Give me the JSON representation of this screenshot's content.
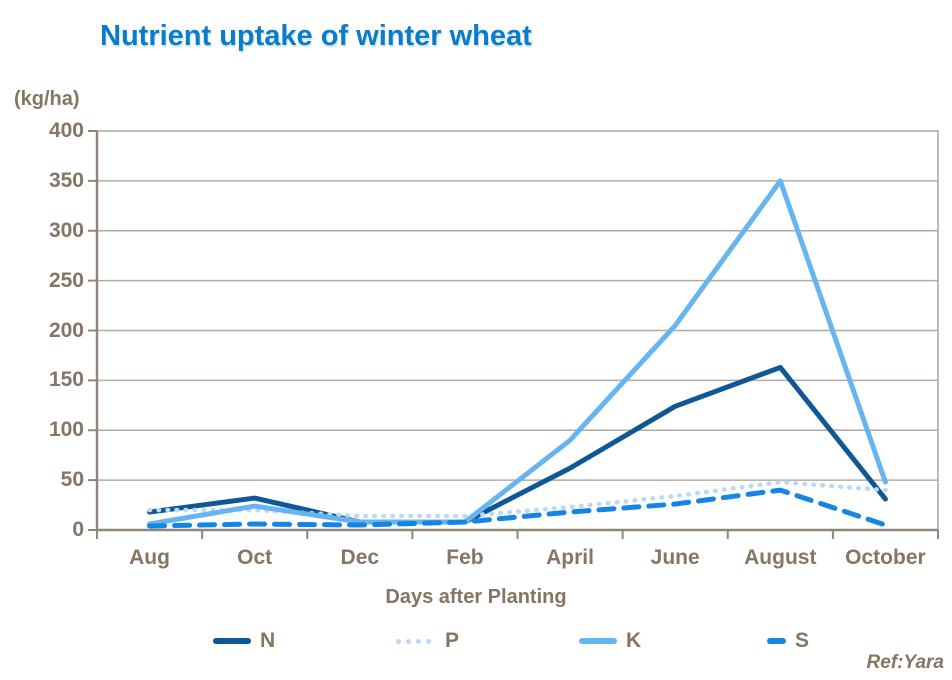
{
  "title": "Nutrient uptake of winter wheat",
  "y_unit_label": "(kg/ha)",
  "x_axis_title": "Days after Planting",
  "ref_label": "Ref:Yara",
  "colors": {
    "title_blue": "#0b7cc9",
    "axis_text": "#857663",
    "gridline": "#b3aaa0",
    "axis_line": "#8f8678"
  },
  "chart_data": {
    "type": "line",
    "title": "Nutrient uptake of winter wheat",
    "xlabel": "Days after Planting",
    "ylabel": "(kg/ha)",
    "categories": [
      "Aug",
      "Oct",
      "Dec",
      "Feb",
      "April",
      "June",
      "August",
      "October"
    ],
    "yticks": [
      0,
      50,
      100,
      150,
      200,
      250,
      300,
      350,
      400
    ],
    "ylim": [
      0,
      400
    ],
    "grid": true,
    "legend_position": "bottom",
    "annotation": "Ref:Yara",
    "series": [
      {
        "name": "N",
        "color": "#0f5795",
        "style": "solid",
        "values": [
          18,
          32,
          8,
          8,
          62,
          124,
          163,
          31
        ]
      },
      {
        "name": "P",
        "color": "#bcd9f4",
        "style": "dotted",
        "values": [
          20,
          20,
          14,
          14,
          23,
          34,
          48,
          40
        ]
      },
      {
        "name": "K",
        "color": "#66b5f0",
        "style": "solid",
        "values": [
          6,
          24,
          8,
          8,
          90,
          205,
          350,
          48
        ]
      },
      {
        "name": "S",
        "color": "#1585e5",
        "style": "dashed",
        "values": [
          4,
          6,
          5,
          8,
          18,
          26,
          40,
          5
        ]
      }
    ]
  }
}
